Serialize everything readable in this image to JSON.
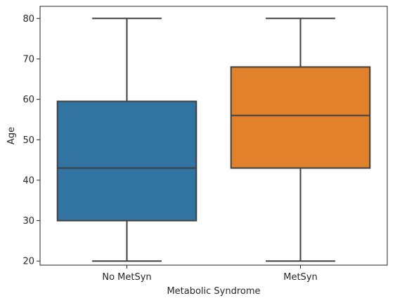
{
  "chart_data": {
    "type": "box",
    "title": "",
    "xlabel": "Metabolic Syndrome",
    "ylabel": "Age",
    "categories": [
      "No MetSyn",
      "MetSyn"
    ],
    "ylim": [
      19,
      83
    ],
    "yticks": [
      20,
      30,
      40,
      50,
      60,
      70,
      80
    ],
    "grid": false,
    "boxes": [
      {
        "category": "No MetSyn",
        "min": 20,
        "q1": 30,
        "median": 43,
        "q3": 59.5,
        "max": 80,
        "color": "#3274a1"
      },
      {
        "category": "MetSyn",
        "min": 20,
        "q1": 43,
        "median": 56,
        "q3": 68,
        "max": 80,
        "color": "#e1812c"
      }
    ]
  }
}
